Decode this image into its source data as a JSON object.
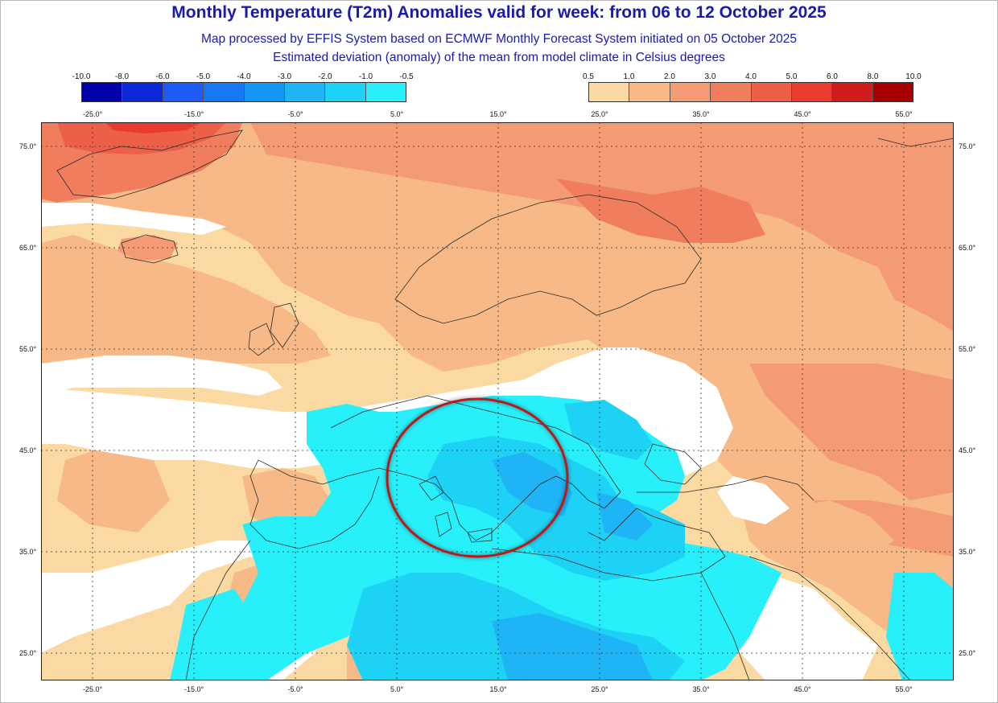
{
  "title": "Monthly Temperature (T2m) Anomalies valid for week: from 06 to 12 October 2025",
  "subtitle1": "Map processed by EFFIS System based on ECMWF Monthly Forecast System initiated on 05 October 2025",
  "subtitle2": "Estimated deviation (anomaly) of the mean from model climate in Celsius degrees",
  "legend_negative": {
    "ticks": [
      "-10.0",
      "-8.0",
      "-6.0",
      "-5.0",
      "-4.0",
      "-3.0",
      "-2.0",
      "-1.0",
      "-0.5"
    ],
    "colors": [
      "#0000a8",
      "#0a28d8",
      "#1e5af5",
      "#1478f0",
      "#1496f5",
      "#1eb4f5",
      "#1ed2f5",
      "#28f0fa"
    ]
  },
  "legend_positive": {
    "ticks": [
      "0.5",
      "1.0",
      "2.0",
      "3.0",
      "4.0",
      "5.0",
      "6.0",
      "8.0",
      "10.0"
    ],
    "colors": [
      "#fbd9a3",
      "#f7b987",
      "#f49b75",
      "#f07e5e",
      "#ec5f48",
      "#e83c2e",
      "#d01c1c",
      "#a80000"
    ]
  },
  "lon_labels": [
    "-25.0°",
    "-15.0°",
    "-5.0°",
    "5.0°",
    "15.0°",
    "25.0°",
    "35.0°",
    "45.0°",
    "55.0°"
  ],
  "lat_labels": [
    "75.0°",
    "65.0°",
    "55.0°",
    "45.0°",
    "35.0°",
    "25.0°"
  ],
  "colors": {
    "title": "#1a1ab0",
    "highlight_circle": "#c01818",
    "coastline": "#2a2a2a"
  }
}
